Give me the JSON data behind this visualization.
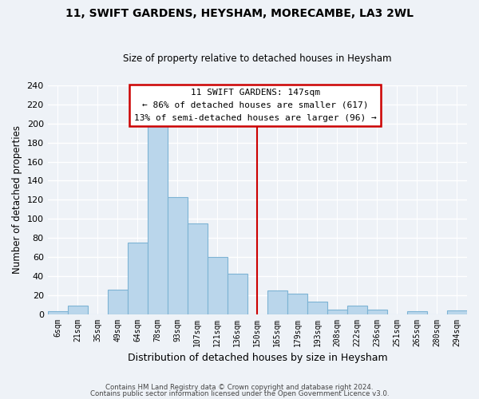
{
  "title": "11, SWIFT GARDENS, HEYSHAM, MORECAMBE, LA3 2WL",
  "subtitle": "Size of property relative to detached houses in Heysham",
  "xlabel": "Distribution of detached houses by size in Heysham",
  "ylabel": "Number of detached properties",
  "bin_labels": [
    "6sqm",
    "21sqm",
    "35sqm",
    "49sqm",
    "64sqm",
    "78sqm",
    "93sqm",
    "107sqm",
    "121sqm",
    "136sqm",
    "150sqm",
    "165sqm",
    "179sqm",
    "193sqm",
    "208sqm",
    "222sqm",
    "236sqm",
    "251sqm",
    "265sqm",
    "280sqm",
    "294sqm"
  ],
  "counts": [
    3,
    9,
    0,
    26,
    75,
    198,
    123,
    95,
    60,
    42,
    0,
    25,
    21,
    13,
    5,
    9,
    5,
    0,
    3,
    0,
    4
  ],
  "bar_color": "#bad6eb",
  "bar_edge_color": "#7db3d4",
  "marker_bin_index": 10,
  "marker_color": "#cc0000",
  "annotation_title": "11 SWIFT GARDENS: 147sqm",
  "annotation_line1": "← 86% of detached houses are smaller (617)",
  "annotation_line2": "13% of semi-detached houses are larger (96) →",
  "annotation_box_color": "#ffffff",
  "annotation_box_edge": "#cc0000",
  "ylim": [
    0,
    240
  ],
  "yticks": [
    0,
    20,
    40,
    60,
    80,
    100,
    120,
    140,
    160,
    180,
    200,
    220,
    240
  ],
  "footer1": "Contains HM Land Registry data © Crown copyright and database right 2024.",
  "footer2": "Contains public sector information licensed under the Open Government Licence v3.0.",
  "bg_color": "#eef2f7"
}
